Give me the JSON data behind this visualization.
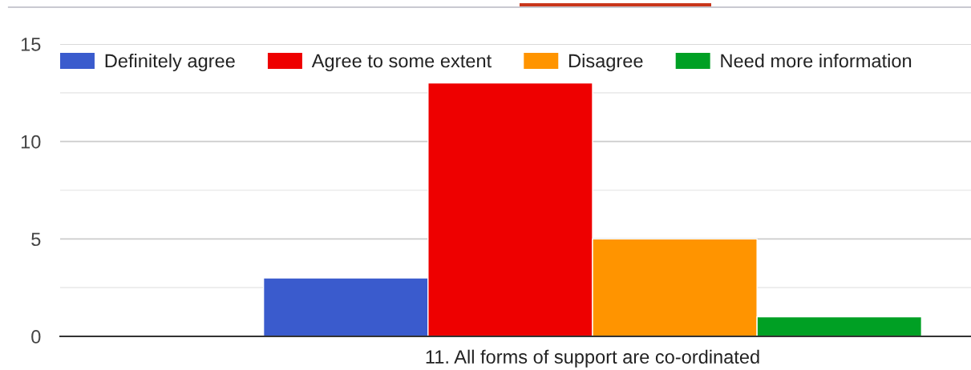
{
  "chart_data": {
    "type": "bar",
    "categories": [
      "11. All forms of support are co-ordinated"
    ],
    "series": [
      {
        "name": "Definitely agree",
        "color": "#3a5bcd",
        "values": [
          3
        ]
      },
      {
        "name": "Agree to some extent",
        "color": "#ee0000",
        "values": [
          13
        ]
      },
      {
        "name": "Disagree",
        "color": "#ff9400",
        "values": [
          5
        ]
      },
      {
        "name": "Need more information",
        "color": "#00a024",
        "values": [
          1
        ]
      }
    ],
    "ylim": [
      0,
      15
    ],
    "yticks": [
      0,
      {
        "value": 2.5,
        "label": null
      },
      5,
      {
        "value": 7.5,
        "label": null
      },
      10,
      {
        "value": 12.5,
        "label": null
      },
      15
    ],
    "grid": "y",
    "legend": "top left"
  }
}
